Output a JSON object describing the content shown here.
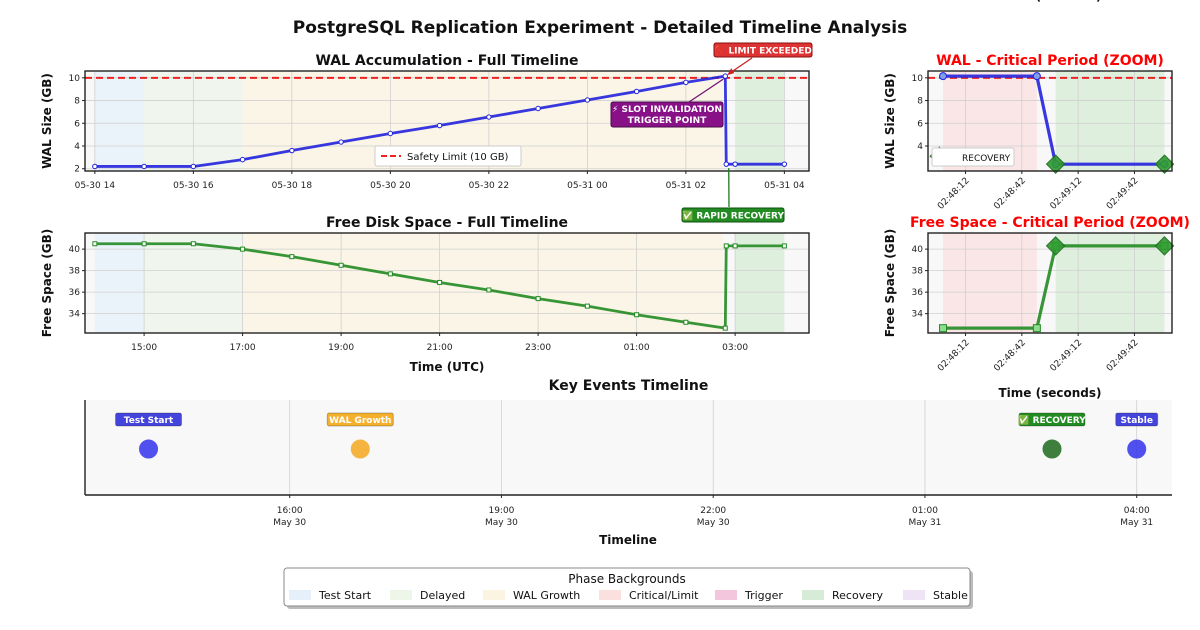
{
  "figure": {
    "title": "PostgreSQL Replication Experiment - Detailed Timeline Analysis"
  },
  "colors": {
    "wal_line": "#2222dd",
    "free_line": "#228b22",
    "limit_line": "#ee2222",
    "badge_limit": "#dd3333",
    "badge_trigger": "#881188",
    "badge_recovery": "#228b22",
    "badge_start": "#4444dd",
    "badge_growth": "#f5b12e",
    "badge_stable": "#4444dd"
  },
  "chart_data": [
    {
      "id": "wal_full",
      "type": "line",
      "title": "WAL Accumulation - Full Timeline",
      "xlabel": "",
      "ylabel": "WAL Size (GB)",
      "ylim": [
        1.8,
        10.6
      ],
      "yticks": [
        2,
        4,
        6,
        8,
        10
      ],
      "x_unit": "hours since 2025-05-30 00:00 UTC",
      "xlim": [
        13.8,
        28.5
      ],
      "xticks": [
        {
          "v": 14,
          "label": "05-30 14"
        },
        {
          "v": 16,
          "label": "05-30 16"
        },
        {
          "v": 18,
          "label": "05-30 18"
        },
        {
          "v": 20,
          "label": "05-30 20"
        },
        {
          "v": 22,
          "label": "05-30 22"
        },
        {
          "v": 24,
          "label": "05-31 00"
        },
        {
          "v": 26,
          "label": "05-31 02"
        },
        {
          "v": 28,
          "label": "05-31 04"
        }
      ],
      "x": [
        14,
        15,
        16,
        17,
        18,
        19,
        20,
        21,
        22,
        23,
        24,
        25,
        26,
        26.8,
        26.82,
        27,
        28
      ],
      "series": [
        {
          "values": [
            2.2,
            2.2,
            2.2,
            2.8,
            3.6,
            4.35,
            5.1,
            5.8,
            6.55,
            7.3,
            8.05,
            8.8,
            9.6,
            10.15,
            2.4,
            2.4,
            2.4
          ]
        }
      ],
      "limit": {
        "value": 10,
        "label": "Safety Limit (10 GB)"
      },
      "legend": "lower-center",
      "annotations": [
        {
          "text": "🚫 LIMIT EXCEEDED",
          "x": 26.8,
          "y": 10.15
        },
        {
          "text": "⚡ SLOT INVALIDATION",
          "text2": "TRIGGER POINT",
          "x": 26.8,
          "y": 10.15
        },
        {
          "text": "✅ RAPID RECOVERY",
          "x": 26.85,
          "y": 2.4
        }
      ],
      "phases": [
        {
          "name": "Test Start",
          "x0": 14,
          "x1": 15
        },
        {
          "name": "Delayed",
          "x0": 15,
          "x1": 17
        },
        {
          "name": "WAL Growth",
          "x0": 17,
          "x1": 26.75
        },
        {
          "name": "Recovery",
          "x0": 27,
          "x1": 28
        }
      ]
    },
    {
      "id": "free_full",
      "type": "line",
      "title": "Free Disk Space - Full Timeline",
      "xlabel": "Time (UTC)",
      "ylabel": "Free Space (GB)",
      "ylim": [
        32.2,
        41.5
      ],
      "yticks": [
        34,
        36,
        38,
        40
      ],
      "x_unit": "hours since 2025-05-30 00:00 UTC",
      "xlim": [
        13.8,
        28.5
      ],
      "xticks": [
        {
          "v": 15,
          "label": "15:00"
        },
        {
          "v": 17,
          "label": "17:00"
        },
        {
          "v": 19,
          "label": "19:00"
        },
        {
          "v": 21,
          "label": "21:00"
        },
        {
          "v": 23,
          "label": "23:00"
        },
        {
          "v": 25,
          "label": "01:00"
        },
        {
          "v": 27,
          "label": "03:00"
        }
      ],
      "x": [
        14,
        15,
        16,
        17,
        18,
        19,
        20,
        21,
        22,
        23,
        24,
        25,
        26,
        26.8,
        26.82,
        27,
        28
      ],
      "series": [
        {
          "values": [
            40.5,
            40.5,
            40.5,
            40.0,
            39.3,
            38.5,
            37.7,
            36.9,
            36.2,
            35.4,
            34.7,
            33.9,
            33.2,
            32.65,
            40.3,
            40.3,
            40.3
          ]
        }
      ],
      "phases": [
        {
          "name": "Test Start",
          "x0": 14,
          "x1": 15
        },
        {
          "name": "Delayed",
          "x0": 15,
          "x1": 17
        },
        {
          "name": "WAL Growth",
          "x0": 17,
          "x1": 26.75
        },
        {
          "name": "Recovery",
          "x0": 27,
          "x1": 28
        }
      ]
    },
    {
      "id": "wal_zoom",
      "type": "line",
      "title": "WAL - Critical Period (ZOOM)",
      "xlabel": "",
      "ylabel": "WAL Size (GB)",
      "ylim": [
        1.8,
        10.6
      ],
      "yticks": [
        4,
        6,
        8,
        10
      ],
      "x_unit": "seconds since 02:48:00",
      "xlim": [
        -8,
        122
      ],
      "xticks": [
        {
          "v": 12,
          "label": "02:48:12"
        },
        {
          "v": 42,
          "label": "02:48:42"
        },
        {
          "v": 72,
          "label": "02:49:12"
        },
        {
          "v": 102,
          "label": "02:49:42"
        }
      ],
      "x": [
        0,
        50,
        60,
        118
      ],
      "series": [
        {
          "values": [
            10.15,
            10.15,
            2.4,
            2.4
          ]
        }
      ],
      "limit": {
        "value": 10
      },
      "recovery_markers": [
        -2,
        60,
        118
      ],
      "recovery_label": "RECOVERY",
      "phases": [
        {
          "name": "Critical/Limit",
          "x0": 0,
          "x1": 50
        },
        {
          "name": "Recovery",
          "x0": 60,
          "x1": 118
        }
      ]
    },
    {
      "id": "free_zoom",
      "type": "line",
      "title": "Free Space - Critical Period (ZOOM)",
      "xlabel": "Time (seconds)",
      "ylabel": "Free Space (GB)",
      "ylim": [
        32.2,
        41.5
      ],
      "yticks": [
        34,
        36,
        38,
        40
      ],
      "x_unit": "seconds since 02:48:00",
      "xlim": [
        -8,
        122
      ],
      "xticks": [
        {
          "v": 12,
          "label": "02:48:12"
        },
        {
          "v": 42,
          "label": "02:48:42"
        },
        {
          "v": 72,
          "label": "02:49:12"
        },
        {
          "v": 102,
          "label": "02:49:42"
        }
      ],
      "x": [
        0,
        50,
        60,
        118
      ],
      "series": [
        {
          "values": [
            32.65,
            32.65,
            40.3,
            40.3
          ]
        }
      ],
      "recovery_markers": [
        60,
        118
      ],
      "phases": [
        {
          "name": "Critical/Limit",
          "x0": 0,
          "x1": 50
        },
        {
          "name": "Recovery",
          "x0": 60,
          "x1": 118
        }
      ]
    },
    {
      "id": "events",
      "type": "scatter",
      "title": "Key Events Timeline",
      "xlabel": "Timeline",
      "ylabel": "",
      "x_unit": "hours since 2025-05-30 00:00 UTC",
      "xlim": [
        13.1,
        28.5
      ],
      "xticks": [
        {
          "v": 16,
          "label": "16:00",
          "label2": "May 30"
        },
        {
          "v": 19,
          "label": "19:00",
          "label2": "May 30"
        },
        {
          "v": 22,
          "label": "22:00",
          "label2": "May 30"
        },
        {
          "v": 25,
          "label": "01:00",
          "label2": "May 31"
        },
        {
          "v": 28,
          "label": "04:00",
          "label2": "May 31"
        }
      ],
      "events": [
        {
          "label": "Test Start",
          "x": 14.0,
          "color": "#3333ee"
        },
        {
          "label": "WAL Growth",
          "x": 17.0,
          "color": "#f5a820"
        },
        {
          "label": "✅ RECOVERY",
          "x": 26.8,
          "color": "#1e6b1e"
        },
        {
          "label": "Stable",
          "x": 28.0,
          "color": "#3333ee"
        }
      ]
    }
  ],
  "legend": {
    "title": "Phase Backgrounds",
    "items": [
      {
        "label": "Test Start",
        "color": "#e6f0fb"
      },
      {
        "label": "Delayed",
        "color": "#eef6ea"
      },
      {
        "label": "WAL Growth",
        "color": "#fbf4e0"
      },
      {
        "label": "Critical/Limit",
        "color": "#fbe0e0"
      },
      {
        "label": "Trigger",
        "color": "#f3c6dd"
      },
      {
        "label": "Recovery",
        "color": "#d6ecd6"
      },
      {
        "label": "Stable",
        "color": "#efe4f6"
      }
    ]
  }
}
